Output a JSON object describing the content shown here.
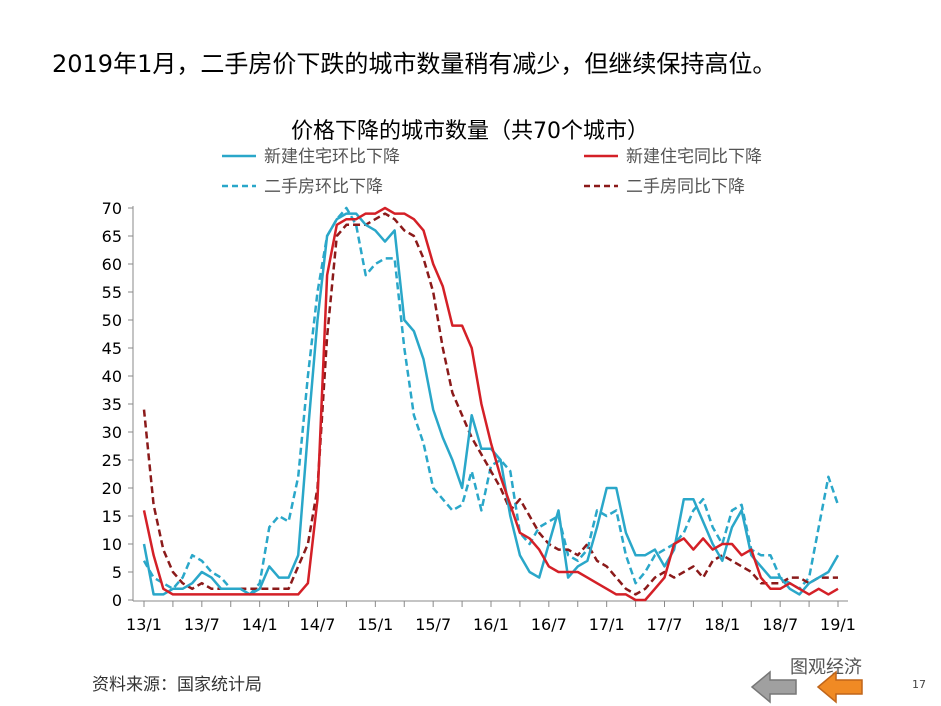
{
  "headline": "2019年1月，二手房价下跌的城市数量稍有减少，但继续保持高位。",
  "source": "资料来源：国家统计局",
  "watermark": "图观经济",
  "page_number": "17",
  "nav": {
    "prev_color": "#a0a0a0",
    "next_color": "#f08a24",
    "prev_icon": "arrow-left-icon",
    "next_icon": "arrow-left-icon"
  },
  "chart_data": {
    "type": "line",
    "title": "价格下降的城市数量（共70个城市）",
    "xlabel": "",
    "ylabel": "",
    "ylim": [
      0,
      70
    ],
    "yticks": [
      0,
      5,
      10,
      15,
      20,
      25,
      30,
      35,
      40,
      45,
      50,
      55,
      60,
      65,
      70
    ],
    "x_start": "13/1",
    "x_end": "19/1",
    "xtick_labels": [
      "13/1",
      "13/7",
      "14/1",
      "14/7",
      "15/1",
      "15/7",
      "16/1",
      "16/7",
      "17/1",
      "17/7",
      "18/1",
      "18/7",
      "19/1"
    ],
    "grid": false,
    "legend_position": "top",
    "series": [
      {
        "name": "新建住宅环比下降",
        "color": "#2aa7c9",
        "dash": false,
        "values": [
          10,
          1,
          1,
          2,
          2,
          3,
          5,
          4,
          2,
          2,
          2,
          1,
          2,
          6,
          4,
          4,
          8,
          30,
          50,
          65,
          68,
          69,
          69,
          67,
          66,
          64,
          66,
          50,
          48,
          43,
          34,
          29,
          25,
          20,
          33,
          27,
          27,
          25,
          15,
          8,
          5,
          4,
          10,
          16,
          4,
          6,
          7,
          13,
          20,
          20,
          12,
          8,
          8,
          9,
          6,
          9,
          18,
          18,
          14,
          10,
          7,
          13,
          16,
          8,
          6,
          4,
          4,
          2,
          1,
          3,
          4,
          5,
          8
        ]
      },
      {
        "name": "新建住宅同比下降",
        "color": "#d42027",
        "dash": false,
        "values": [
          16,
          8,
          2,
          1,
          1,
          1,
          1,
          1,
          1,
          1,
          1,
          1,
          1,
          1,
          1,
          1,
          1,
          3,
          18,
          58,
          67,
          68,
          68,
          69,
          69,
          70,
          69,
          69,
          68,
          66,
          60,
          56,
          49,
          49,
          45,
          35,
          28,
          22,
          17,
          12,
          11,
          9,
          6,
          5,
          5,
          5,
          4,
          3,
          2,
          1,
          1,
          0,
          0,
          2,
          4,
          10,
          11,
          9,
          11,
          9,
          10,
          10,
          8,
          9,
          4,
          2,
          2,
          3,
          2,
          1,
          2,
          1,
          2
        ]
      },
      {
        "name": "二手房环比下降",
        "color": "#2aa7c9",
        "dash": true,
        "values": [
          7,
          4,
          3,
          2,
          4,
          8,
          7,
          5,
          4,
          2,
          2,
          1,
          3,
          13,
          15,
          14,
          22,
          40,
          55,
          65,
          68,
          70,
          67,
          58,
          60,
          61,
          61,
          45,
          33,
          28,
          20,
          18,
          16,
          17,
          23,
          16,
          24,
          25,
          23,
          12,
          10,
          13,
          14,
          15,
          8,
          7,
          9,
          16,
          15,
          16,
          8,
          3,
          5,
          8,
          9,
          10,
          12,
          16,
          18,
          13,
          10,
          16,
          17,
          9,
          8,
          8,
          4,
          3,
          2,
          4,
          13,
          22,
          17
        ]
      },
      {
        "name": "二手房同比下降",
        "color": "#8b1a1a",
        "dash": true,
        "values": [
          34,
          17,
          9,
          5,
          3,
          2,
          3,
          2,
          2,
          2,
          2,
          2,
          2,
          2,
          2,
          2,
          6,
          10,
          20,
          47,
          65,
          67,
          67,
          67,
          68,
          69,
          68,
          66,
          65,
          61,
          55,
          45,
          37,
          33,
          29,
          26,
          23,
          20,
          16,
          18,
          15,
          12,
          10,
          9,
          9,
          8,
          10,
          7,
          6,
          4,
          2,
          1,
          2,
          4,
          5,
          4,
          5,
          6,
          4,
          7,
          8,
          7,
          6,
          5,
          3,
          3,
          3,
          4,
          4,
          3,
          4,
          4,
          4
        ]
      }
    ]
  }
}
